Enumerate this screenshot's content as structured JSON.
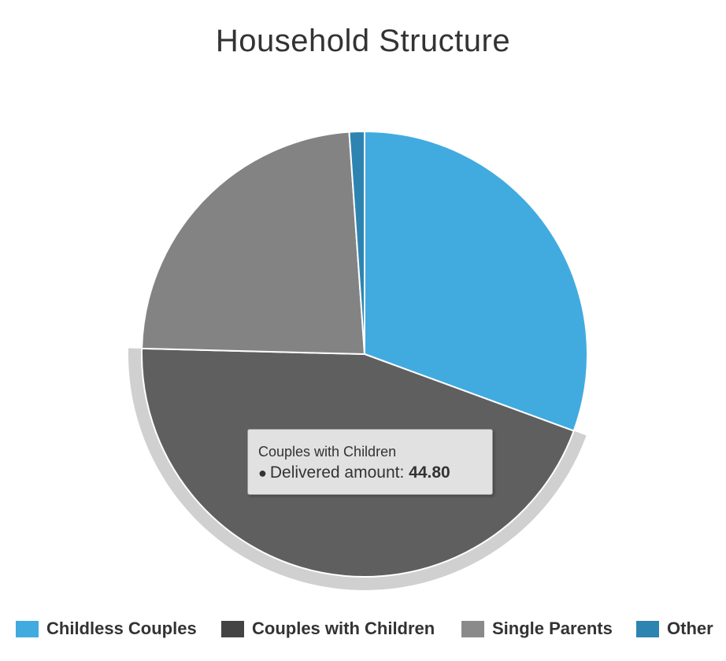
{
  "chart_data": {
    "type": "pie",
    "title": "Household Structure",
    "series_name": "Delivered amount",
    "slices": [
      {
        "label": "Childless Couples",
        "value": 30.6,
        "color": "#41abe0"
      },
      {
        "label": "Couples with Children",
        "value": 44.8,
        "color": "#5f5f5f"
      },
      {
        "label": "Single Parents",
        "value": 23.5,
        "color": "#838383"
      },
      {
        "label": "Other",
        "value": 1.1,
        "color": "#2e84b1"
      }
    ],
    "legend": {
      "placement": "bottom",
      "entries": [
        {
          "label": "Childless Couples",
          "color": "#41abe0"
        },
        {
          "label": "Couples with Children",
          "color": "#444444"
        },
        {
          "label": "Single Parents",
          "color": "#8a8a8a"
        },
        {
          "label": "Other",
          "color": "#2e84b1"
        }
      ]
    },
    "hovered_slice": "Couples with Children"
  },
  "tooltip": {
    "series": "Couples with Children",
    "label": "Delivered amount:",
    "value": "44.80"
  }
}
